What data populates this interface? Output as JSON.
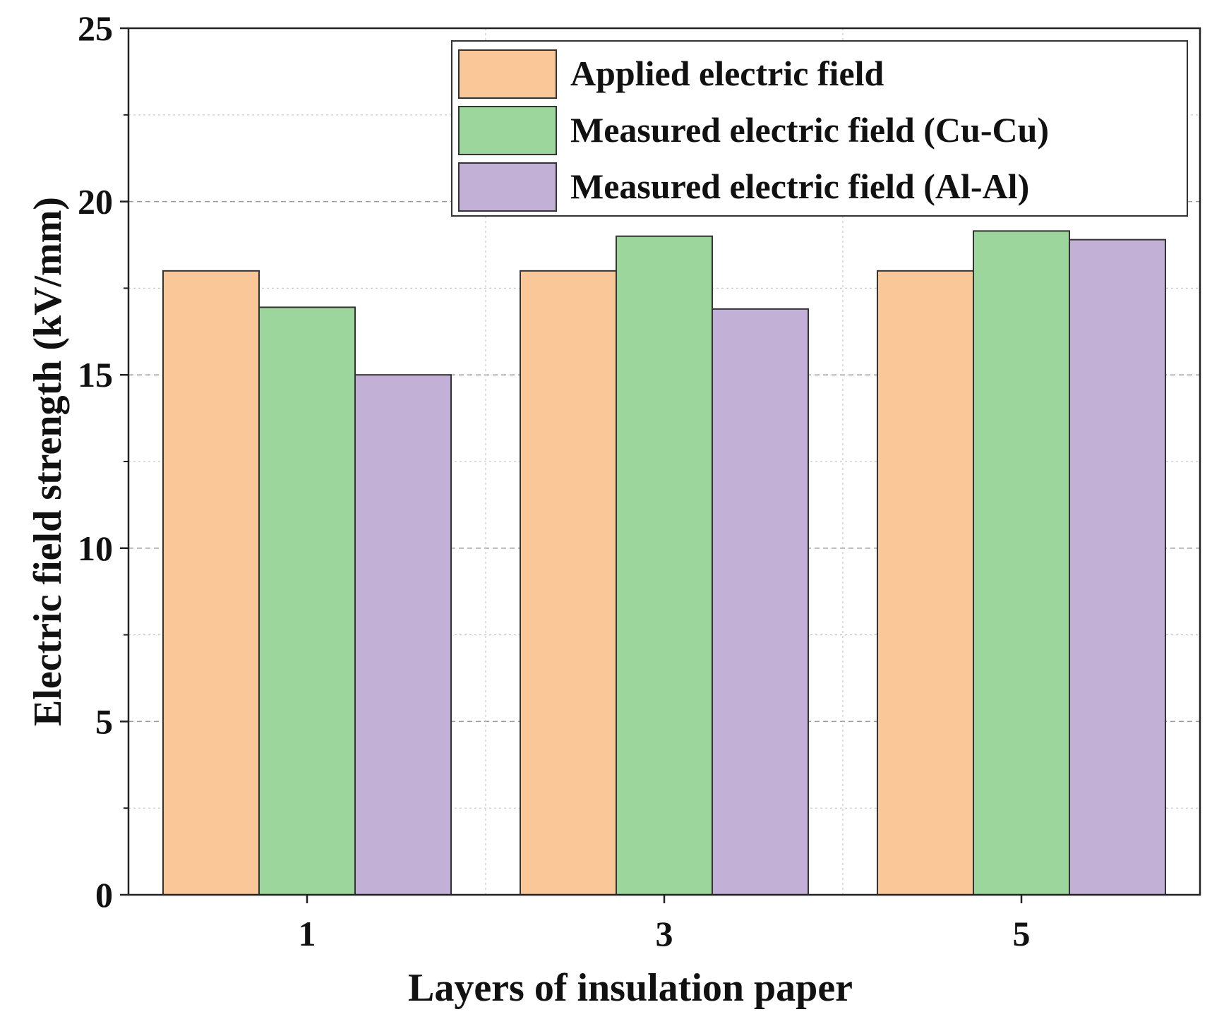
{
  "chart_data": {
    "type": "bar",
    "title": "",
    "xlabel": "Layers of insulation paper",
    "ylabel": "Electric field strength (kV/mm)",
    "categories": [
      "1",
      "3",
      "5"
    ],
    "ylim": [
      0,
      25
    ],
    "yticks": [
      "0",
      "5",
      "10",
      "15",
      "20",
      "25"
    ],
    "grid": true,
    "legend_position": "top-right",
    "series": [
      {
        "name": "Applied electric field",
        "color": "#FAC898",
        "values": [
          18.0,
          18.0,
          18.0
        ]
      },
      {
        "name": "Measured electric field (Cu-Cu)",
        "color": "#9DD69D",
        "values": [
          16.95,
          19.0,
          19.15
        ]
      },
      {
        "name": "Measured electric field (Al-Al)",
        "color": "#C3B0D6",
        "values": [
          15.0,
          16.9,
          18.9
        ]
      }
    ]
  }
}
